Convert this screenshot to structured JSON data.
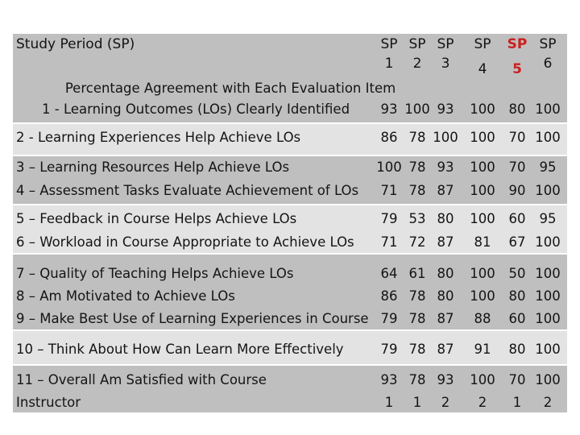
{
  "header": {
    "title": "Study Period (SP)",
    "subheader": "Percentage Agreement with Each Evaluation Item",
    "columns": [
      {
        "line1": "SP",
        "line2": "1"
      },
      {
        "line1": "SP",
        "line2": "2"
      },
      {
        "line1": "SP",
        "line2": "3"
      },
      {
        "line1": "SP",
        "line2": "4"
      },
      {
        "line1": "SP",
        "line2": "5",
        "color": "#cc1f1f"
      },
      {
        "line1": "SP",
        "line2": "6"
      }
    ]
  },
  "rows": [
    {
      "label": "1 - Learning  Outcomes (LOs) Clearly Identified",
      "values": [
        "93",
        "100",
        "93",
        "100",
        "80",
        "100"
      ]
    },
    {
      "label": "2 - Learning Experiences Help Achieve LOs",
      "values": [
        "86",
        "78",
        "100",
        "100",
        "70",
        "100"
      ]
    },
    {
      "label": "3 – Learning Resources Help Achieve LOs",
      "values": [
        "100",
        "78",
        "93",
        "100",
        "70",
        "95"
      ]
    },
    {
      "label": "4 – Assessment Tasks Evaluate Achievement of LOs",
      "values": [
        "71",
        "78",
        "87",
        "100",
        "90",
        "100"
      ]
    },
    {
      "label": "5 – Feedback in Course Helps Achieve LOs",
      "values": [
        "79",
        "53",
        "80",
        "100",
        "60",
        "95"
      ]
    },
    {
      "label": "6 – Workload in Course Appropriate to Achieve LOs",
      "values": [
        "71",
        "72",
        "87",
        "81",
        "67",
        "100"
      ]
    },
    {
      "label": "7 – Quality of Teaching Helps Achieve LOs",
      "values": [
        "64",
        "61",
        "80",
        "100",
        "50",
        "100"
      ]
    },
    {
      "label": "8 – Am Motivated to Achieve LOs",
      "values": [
        "86",
        "78",
        "80",
        "100",
        "80",
        "100"
      ]
    },
    {
      "label": "9 –  Make Best Use of Learning Experiences in Course",
      "values": [
        "79",
        "78",
        "87",
        "88",
        "60",
        "100"
      ]
    },
    {
      "label": "10 – Think About How Can Learn More Effectively",
      "values": [
        "79",
        "78",
        "87",
        "91",
        "80",
        "100"
      ]
    },
    {
      "label": "11 – Overall Am Satisfied with Course",
      "values": [
        "93",
        "78",
        "93",
        "100",
        "70",
        "100"
      ]
    },
    {
      "label": "Instructor",
      "values": [
        "1",
        "1",
        "2",
        "2",
        "1",
        "2"
      ]
    }
  ],
  "colors": {
    "band_dark": "#bfbfbf",
    "band_light": "#e3e3e3",
    "highlight": "#cc1f1f"
  }
}
